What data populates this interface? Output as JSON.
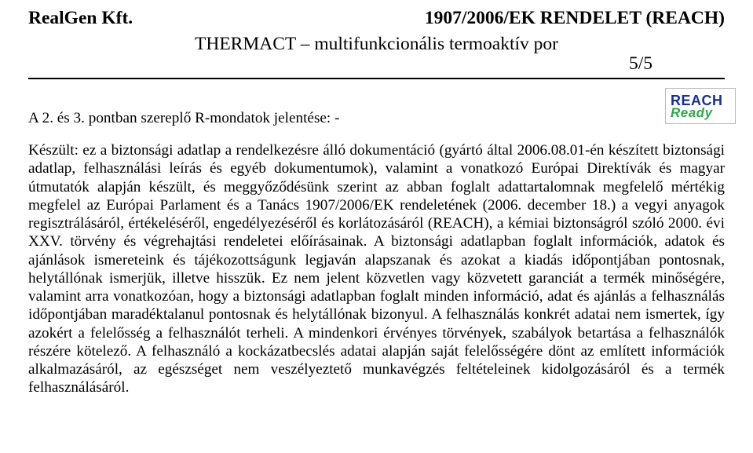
{
  "header": {
    "company": "RealGen Kft.",
    "regulation": "1907/2006/EK RENDELET (REACH)",
    "subtitle": "THERMACT – multifunkcionális termoaktív por",
    "pageNumber": "5/5"
  },
  "logo": {
    "line1": "REACH",
    "line2": "Ready"
  },
  "intro": "A 2. és 3. pontban szereplő R-mondatok jelentése: -",
  "body": "Készült: ez a biztonsági adatlap a rendelkezésre álló dokumentáció (gyártó által 2006.08.01-én készített biztonsági adatlap, felhasználási leírás és egyéb dokumentumok), valamint a vonatkozó Európai Direktívák és magyar útmutatók alapján készült, és meggyőződésünk szerint az abban foglalt adattartalomnak megfelelő mértékig megfelel az Európai Parlament és a Tanács 1907/2006/EK rendeletének (2006. december 18.) a vegyi anyagok regisztrálásáról, értékeléséről, engedélyezéséről és korlátozásáról (REACH), a kémiai biztonságról szóló 2000. évi XXV. törvény és végrehajtási rendeletei előírásainak. A biztonsági adatlapban foglalt információk, adatok és ajánlások ismereteink és tájékozottságunk legjaván alapszanak és azokat a kiadás időpontjában pontosnak, helytállónak ismerjük, illetve hisszük. Ez nem jelent közvetlen vagy közvetett garanciát a termék minőségére, valamint arra vonatkozóan, hogy a biztonsági adatlapban foglalt minden információ, adat és ajánlás a felhasználás időpontjában maradéktalanul pontosnak és helytállónak bizonyul. A felhasználás konkrét adatai nem ismertek, így azokért a felelősség a felhasználót terheli. A mindenkori érvényes törvények, szabályok betartása a felhasználók részére kötelező. A felhasználó a kockázatbecslés adatai alapján saját felelősségére dönt az említett információk alkalmazásáról, az egészséget nem veszélyeztető munkavégzés feltételeinek kidolgozásáról és a termék felhasználásáról."
}
